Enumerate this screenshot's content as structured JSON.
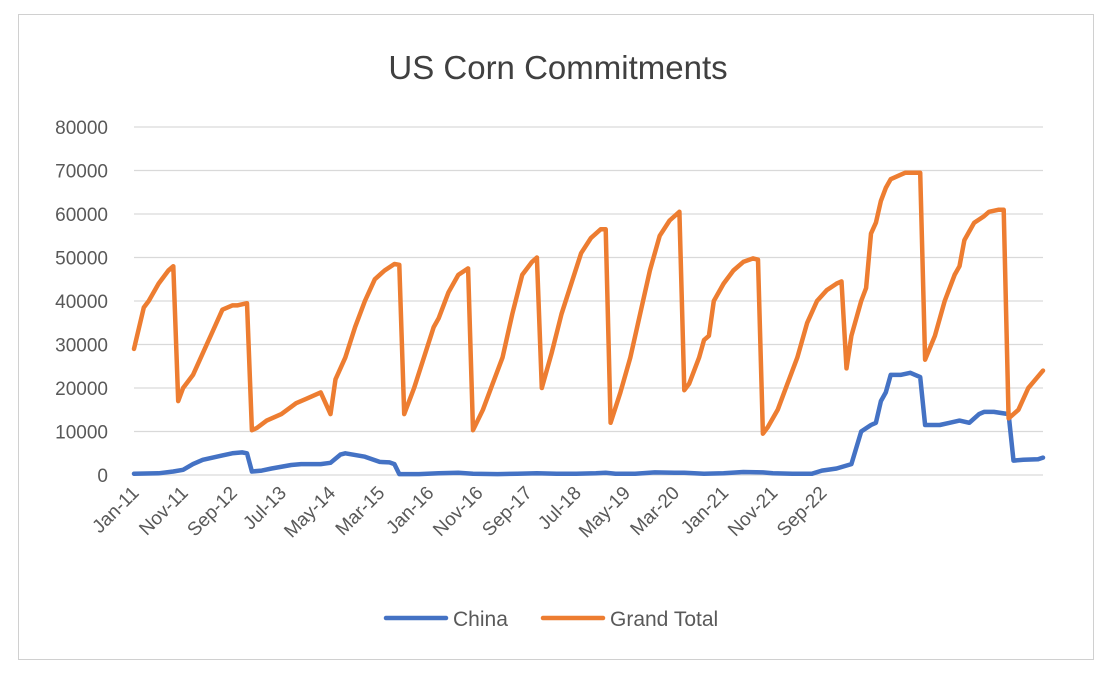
{
  "chart_data": {
    "type": "line",
    "title": "US Corn Commitments",
    "xlabel": "",
    "ylabel": "",
    "ylim": [
      0,
      80000
    ],
    "yticks": [
      "80000",
      "70000",
      "60000",
      "50000",
      "40000",
      "30000",
      "20000",
      "10000",
      "0"
    ],
    "xticks": [
      "Jan-11",
      "Nov-11",
      "Sep-12",
      "Jul-13",
      "May-14",
      "Mar-15",
      "Jan-16",
      "Nov-16",
      "Sep-17",
      "Jul-18",
      "May-19",
      "Mar-20",
      "Jan-21",
      "Nov-21",
      "Sep-22"
    ],
    "grid": true,
    "legend_position": "bottom",
    "series": [
      {
        "name": "China",
        "color": "#4472C4",
        "points": [
          [
            0,
            300
          ],
          [
            5,
            400
          ],
          [
            8,
            800
          ],
          [
            10,
            1200
          ],
          [
            12,
            2500
          ],
          [
            14,
            3500
          ],
          [
            18,
            4500
          ],
          [
            20,
            5000
          ],
          [
            22,
            5200
          ],
          [
            23,
            5000
          ],
          [
            24,
            800
          ],
          [
            26,
            1000
          ],
          [
            28,
            1500
          ],
          [
            32,
            2300
          ],
          [
            34,
            2500
          ],
          [
            38,
            2500
          ],
          [
            40,
            2800
          ],
          [
            42,
            4700
          ],
          [
            43,
            5000
          ],
          [
            47,
            4200
          ],
          [
            50,
            3000
          ],
          [
            52,
            2900
          ],
          [
            53,
            2500
          ],
          [
            54,
            200
          ],
          [
            58,
            200
          ],
          [
            62,
            400
          ],
          [
            66,
            500
          ],
          [
            69,
            300
          ],
          [
            74,
            200
          ],
          [
            78,
            300
          ],
          [
            82,
            400
          ],
          [
            86,
            300
          ],
          [
            90,
            300
          ],
          [
            94,
            400
          ],
          [
            96,
            500
          ],
          [
            98,
            300
          ],
          [
            102,
            300
          ],
          [
            106,
            600
          ],
          [
            110,
            500
          ],
          [
            112,
            500
          ],
          [
            116,
            300
          ],
          [
            120,
            400
          ],
          [
            124,
            700
          ],
          [
            128,
            600
          ],
          [
            130,
            400
          ],
          [
            134,
            300
          ],
          [
            138,
            300
          ],
          [
            140,
            1000
          ],
          [
            143,
            1500
          ],
          [
            146,
            2500
          ],
          [
            148,
            10000
          ],
          [
            150,
            11500
          ],
          [
            151,
            12000
          ],
          [
            152,
            17000
          ],
          [
            153,
            19000
          ],
          [
            154,
            23000
          ],
          [
            156,
            23000
          ],
          [
            158,
            23500
          ],
          [
            159,
            23000
          ],
          [
            160,
            22500
          ],
          [
            161,
            11500
          ],
          [
            164,
            11500
          ],
          [
            166,
            12000
          ],
          [
            168,
            12500
          ],
          [
            170,
            12000
          ],
          [
            172,
            14000
          ],
          [
            173,
            14500
          ],
          [
            175,
            14500
          ],
          [
            178,
            14000
          ],
          [
            179,
            3300
          ],
          [
            181,
            3500
          ],
          [
            184,
            3600
          ],
          [
            185,
            4000
          ]
        ]
      },
      {
        "name": "Grand Total",
        "color": "#ED7D31",
        "points": [
          [
            0,
            29000
          ],
          [
            2,
            38500
          ],
          [
            3,
            40000
          ],
          [
            5,
            44000
          ],
          [
            7,
            47000
          ],
          [
            8,
            48000
          ],
          [
            9,
            17000
          ],
          [
            10,
            20000
          ],
          [
            12,
            23000
          ],
          [
            14,
            28000
          ],
          [
            16,
            33000
          ],
          [
            18,
            38000
          ],
          [
            20,
            39000
          ],
          [
            21,
            39000
          ],
          [
            23,
            39500
          ],
          [
            24,
            10300
          ],
          [
            25,
            10800
          ],
          [
            27,
            12500
          ],
          [
            30,
            14000
          ],
          [
            33,
            16500
          ],
          [
            35,
            17500
          ],
          [
            38,
            19000
          ],
          [
            40,
            14000
          ],
          [
            41,
            22000
          ],
          [
            43,
            27000
          ],
          [
            45,
            34000
          ],
          [
            47,
            40000
          ],
          [
            49,
            45000
          ],
          [
            51,
            47000
          ],
          [
            53,
            48500
          ],
          [
            54,
            48300
          ],
          [
            55,
            14000
          ],
          [
            57,
            20000
          ],
          [
            59,
            27000
          ],
          [
            61,
            34000
          ],
          [
            62,
            36000
          ],
          [
            64,
            42000
          ],
          [
            66,
            46000
          ],
          [
            68,
            47500
          ],
          [
            69,
            10300
          ],
          [
            71,
            15000
          ],
          [
            73,
            21000
          ],
          [
            75,
            27000
          ],
          [
            77,
            37000
          ],
          [
            79,
            46000
          ],
          [
            81,
            49000
          ],
          [
            82,
            50000
          ],
          [
            83,
            20000
          ],
          [
            85,
            28000
          ],
          [
            87,
            37000
          ],
          [
            89,
            44000
          ],
          [
            91,
            51000
          ],
          [
            93,
            54500
          ],
          [
            95,
            56500
          ],
          [
            96,
            56500
          ],
          [
            97,
            12000
          ],
          [
            99,
            19000
          ],
          [
            101,
            27000
          ],
          [
            103,
            37000
          ],
          [
            105,
            47000
          ],
          [
            107,
            55000
          ],
          [
            109,
            58500
          ],
          [
            111,
            60500
          ],
          [
            112,
            19500
          ],
          [
            113,
            21000
          ],
          [
            115,
            27000
          ],
          [
            116,
            31000
          ],
          [
            117,
            32000
          ],
          [
            118,
            40000
          ],
          [
            120,
            44000
          ],
          [
            122,
            47000
          ],
          [
            124,
            49000
          ],
          [
            126,
            49800
          ],
          [
            127,
            49500
          ],
          [
            128,
            9500
          ],
          [
            129,
            11000
          ],
          [
            131,
            15000
          ],
          [
            133,
            21000
          ],
          [
            135,
            27000
          ],
          [
            137,
            35000
          ],
          [
            139,
            40000
          ],
          [
            141,
            42500
          ],
          [
            143,
            44000
          ],
          [
            144,
            44500
          ],
          [
            145,
            24500
          ],
          [
            146,
            32000
          ],
          [
            148,
            40000
          ],
          [
            149,
            43000
          ],
          [
            150,
            55500
          ],
          [
            151,
            58000
          ],
          [
            152,
            63000
          ],
          [
            153,
            66000
          ],
          [
            154,
            68000
          ],
          [
            156,
            69000
          ],
          [
            157,
            69500
          ],
          [
            159,
            69500
          ],
          [
            160,
            69500
          ],
          [
            161,
            26500
          ],
          [
            163,
            32000
          ],
          [
            165,
            40000
          ],
          [
            167,
            46000
          ],
          [
            168,
            48000
          ],
          [
            169,
            54000
          ],
          [
            170,
            56000
          ],
          [
            171,
            58000
          ],
          [
            173,
            59500
          ],
          [
            174,
            60500
          ],
          [
            176,
            61000
          ],
          [
            177,
            61000
          ],
          [
            178,
            13000
          ],
          [
            180,
            15000
          ],
          [
            182,
            20000
          ],
          [
            185,
            24000
          ]
        ]
      }
    ]
  }
}
